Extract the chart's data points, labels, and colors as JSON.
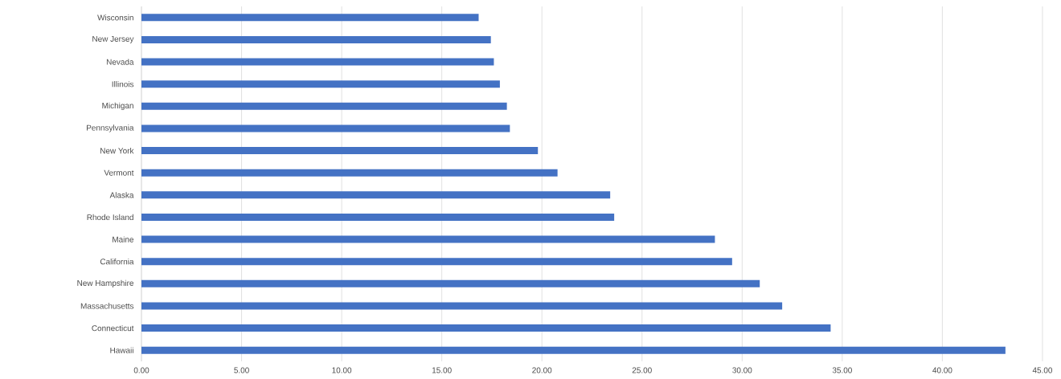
{
  "chart_data": {
    "type": "bar",
    "orientation": "horizontal",
    "categories": [
      "Wisconsin",
      "New Jersey",
      "Nevada",
      "Illinois",
      "Michigan",
      "Pennsylvania",
      "New York",
      "Vermont",
      "Alaska",
      "Rhode Island",
      "Maine",
      "California",
      "New Hampshire",
      "Massachusetts",
      "Connecticut",
      "Hawaii"
    ],
    "values": [
      16.84,
      17.45,
      17.6,
      17.9,
      18.25,
      18.4,
      19.8,
      20.78,
      23.41,
      23.61,
      28.64,
      29.5,
      30.88,
      32.0,
      34.42,
      43.15
    ],
    "color": "#4472c4",
    "xlim": [
      0,
      45
    ],
    "xticks": [
      {
        "value": 0,
        "label": "0.00"
      },
      {
        "value": 5,
        "label": "5.00"
      },
      {
        "value": 10,
        "label": "10.00"
      },
      {
        "value": 15,
        "label": "15.00"
      },
      {
        "value": 20,
        "label": "20.00"
      },
      {
        "value": 25,
        "label": "25.00"
      },
      {
        "value": 30,
        "label": "30.00"
      },
      {
        "value": 35,
        "label": "35.00"
      },
      {
        "value": 40,
        "label": "40.00"
      },
      {
        "value": 45,
        "label": "45.00"
      }
    ],
    "grid": "x"
  }
}
